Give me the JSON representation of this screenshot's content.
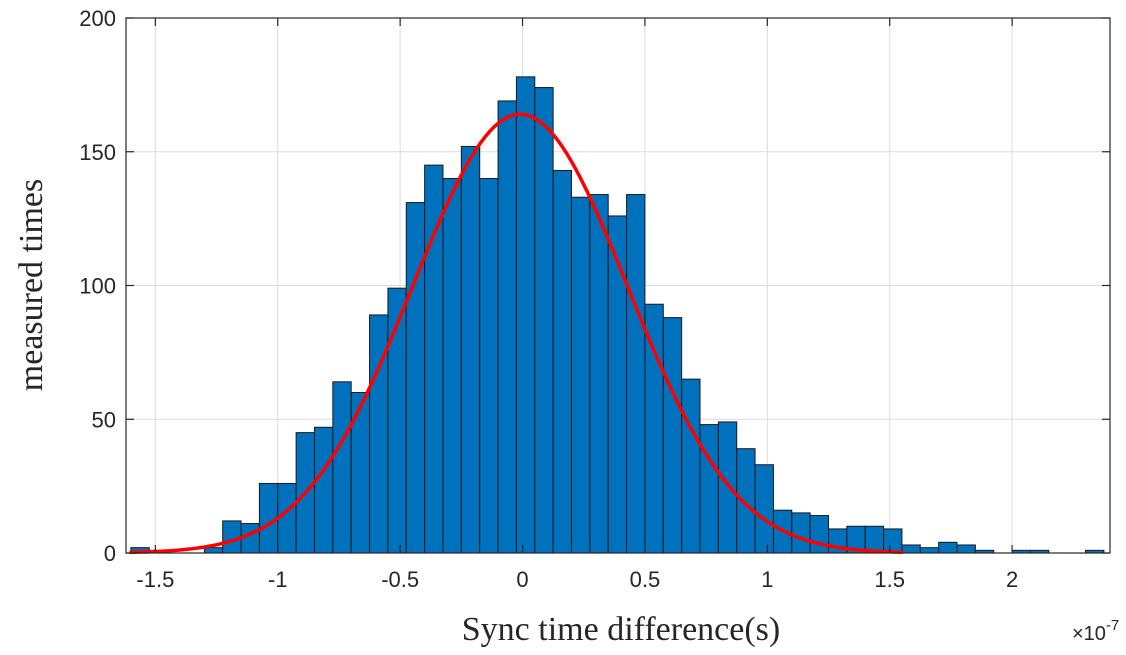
{
  "chart_data": {
    "type": "bar",
    "title": "",
    "xlabel": "Sync time difference(s)",
    "ylabel": "measured times",
    "x_exponent_label": "×10",
    "x_exponent_power": "-7",
    "xlim": [
      -1.62,
      2.4
    ],
    "ylim": [
      0,
      200
    ],
    "grid": true,
    "x_ticks": [
      -1.5,
      -1,
      -0.5,
      0,
      0.5,
      1,
      1.5,
      2
    ],
    "x_tick_labels": [
      "-1.5",
      "-1",
      "-0.5",
      "0",
      "0.5",
      "1",
      "1.5",
      "2"
    ],
    "y_ticks": [
      0,
      50,
      100,
      150,
      200
    ],
    "y_tick_labels": [
      "0",
      "50",
      "100",
      "150",
      "200"
    ],
    "bin_width": 0.075,
    "bin_edges_start": -1.6,
    "bins": [
      {
        "x0": -1.6,
        "value": 2
      },
      {
        "x0": -1.525,
        "value": 1
      },
      {
        "x0": -1.45,
        "value": 0
      },
      {
        "x0": -1.375,
        "value": 0
      },
      {
        "x0": -1.3,
        "value": 2
      },
      {
        "x0": -1.225,
        "value": 12
      },
      {
        "x0": -1.15,
        "value": 11
      },
      {
        "x0": -1.075,
        "value": 26
      },
      {
        "x0": -1.0,
        "value": 26
      },
      {
        "x0": -0.925,
        "value": 45
      },
      {
        "x0": -0.85,
        "value": 47
      },
      {
        "x0": -0.775,
        "value": 64
      },
      {
        "x0": -0.7,
        "value": 60
      },
      {
        "x0": -0.625,
        "value": 89
      },
      {
        "x0": -0.55,
        "value": 99
      },
      {
        "x0": -0.475,
        "value": 131
      },
      {
        "x0": -0.4,
        "value": 145
      },
      {
        "x0": -0.325,
        "value": 140
      },
      {
        "x0": -0.25,
        "value": 152
      },
      {
        "x0": -0.175,
        "value": 140
      },
      {
        "x0": -0.1,
        "value": 169
      },
      {
        "x0": -0.025,
        "value": 178
      },
      {
        "x0": 0.05,
        "value": 174
      },
      {
        "x0": 0.125,
        "value": 143
      },
      {
        "x0": 0.2,
        "value": 133
      },
      {
        "x0": 0.275,
        "value": 134
      },
      {
        "x0": 0.35,
        "value": 126
      },
      {
        "x0": 0.425,
        "value": 134
      },
      {
        "x0": 0.5,
        "value": 93
      },
      {
        "x0": 0.575,
        "value": 88
      },
      {
        "x0": 0.65,
        "value": 65
      },
      {
        "x0": 0.725,
        "value": 48
      },
      {
        "x0": 0.8,
        "value": 49
      },
      {
        "x0": 0.875,
        "value": 39
      },
      {
        "x0": 0.95,
        "value": 33
      },
      {
        "x0": 1.025,
        "value": 16
      },
      {
        "x0": 1.1,
        "value": 15
      },
      {
        "x0": 1.175,
        "value": 14
      },
      {
        "x0": 1.25,
        "value": 9
      },
      {
        "x0": 1.325,
        "value": 10
      },
      {
        "x0": 1.4,
        "value": 10
      },
      {
        "x0": 1.475,
        "value": 9
      },
      {
        "x0": 1.55,
        "value": 3
      },
      {
        "x0": 1.625,
        "value": 2
      },
      {
        "x0": 1.7,
        "value": 4
      },
      {
        "x0": 1.775,
        "value": 3
      },
      {
        "x0": 1.85,
        "value": 1
      },
      {
        "x0": 1.925,
        "value": 0
      },
      {
        "x0": 2.0,
        "value": 1
      },
      {
        "x0": 2.075,
        "value": 1
      },
      {
        "x0": 2.15,
        "value": 0
      },
      {
        "x0": 2.225,
        "value": 0
      },
      {
        "x0": 2.3,
        "value": 1
      }
    ],
    "fit_curve": {
      "type": "gaussian",
      "amplitude": 164,
      "mean": -0.01,
      "sigma": 0.44,
      "x_range": [
        -1.6,
        1.55
      ]
    },
    "colors": {
      "bar_fill": "#0072BD",
      "bar_edge": "#1a1a1a",
      "fit_line": "#ff0000",
      "grid": "#dcdcdc",
      "axis": "#262626"
    }
  }
}
